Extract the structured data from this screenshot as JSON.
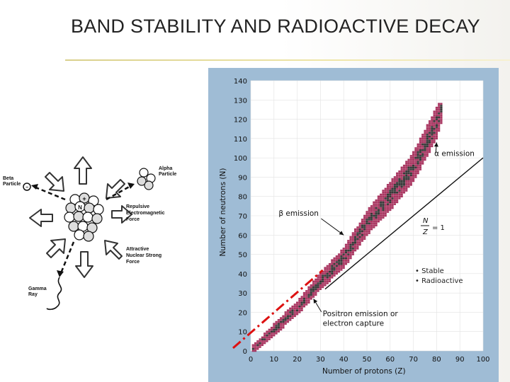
{
  "slide": {
    "title": "BAND STABILITY AND RADIOACTIVE DECAY"
  },
  "nucleus_diagram": {
    "beta_label_1": "Beta",
    "beta_label_2": "Particle",
    "alpha_label_1": "Alpha",
    "alpha_label_2": "Particle",
    "repulsive_1": "Repulsive",
    "repulsive_2": "Electromagnetic",
    "repulsive_3": "Force",
    "attractive_1": "Attractive",
    "attractive_2": "Nuclear Strong",
    "attractive_3": "Force",
    "gamma_1": "Gamma",
    "gamma_2": "Ray",
    "proton_symbol": "+",
    "neutron_symbol": "N",
    "electron_symbol": "−"
  },
  "chart_data": {
    "type": "scatter",
    "title": "",
    "xlabel": "Number of protons (Z)",
    "ylabel": "Number of neutrons (N)",
    "xlim": [
      0,
      100
    ],
    "ylim": [
      0,
      140
    ],
    "x_ticks": [
      "0",
      "10",
      "20",
      "30",
      "40",
      "50",
      "60",
      "70",
      "80",
      "90",
      "100"
    ],
    "y_ticks": [
      "0",
      "10",
      "20",
      "30",
      "40",
      "50",
      "60",
      "70",
      "80",
      "90",
      "100",
      "110",
      "120",
      "130",
      "140"
    ],
    "reference_line": {
      "label_n": "N",
      "label_z": "Z",
      "label_eq": "= 1",
      "points": [
        [
          0,
          0
        ],
        [
          100,
          100
        ]
      ]
    },
    "band_center": [
      [
        1,
        1
      ],
      [
        5,
        5
      ],
      [
        10,
        11
      ],
      [
        20,
        22
      ],
      [
        30,
        36
      ],
      [
        40,
        48
      ],
      [
        50,
        66
      ],
      [
        60,
        80
      ],
      [
        70,
        95
      ],
      [
        80,
        118
      ],
      [
        82,
        126
      ]
    ],
    "band_halfwidth": [
      [
        0,
        2
      ],
      [
        30,
        4
      ],
      [
        60,
        7
      ],
      [
        80,
        8
      ]
    ],
    "annotations": [
      {
        "text": "α emission",
        "at": [
          79,
          101
        ],
        "target": [
          80,
          108
        ]
      },
      {
        "text": "β emission",
        "at": [
          12,
          70
        ],
        "target": [
          40,
          60
        ]
      },
      {
        "text": "Positron emission or",
        "at": [
          31,
          18
        ],
        "target": [
          27,
          27
        ]
      },
      {
        "text": "electron capture",
        "at": [
          31,
          13
        ]
      }
    ],
    "legend": [
      {
        "text": "• Stable",
        "color": "#222222"
      },
      {
        "text": "• Radioactive",
        "color": "#a02050"
      }
    ],
    "overlay_line": {
      "points": [
        [
          0,
          2
        ],
        [
          31,
          40
        ]
      ],
      "color": "#dd1111",
      "style": "dash-dot"
    }
  }
}
